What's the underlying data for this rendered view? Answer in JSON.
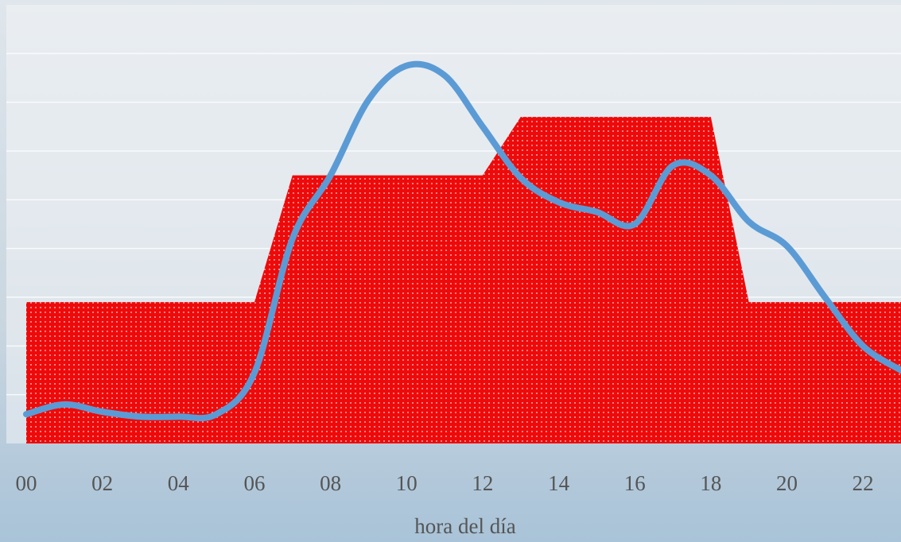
{
  "chart_data": {
    "type": "combo",
    "x_label": "hora del día",
    "x": [
      0,
      1,
      2,
      3,
      4,
      5,
      6,
      7,
      8,
      9,
      10,
      11,
      12,
      13,
      14,
      15,
      16,
      17,
      18,
      19,
      20,
      21,
      22,
      23
    ],
    "series": [
      {
        "type": "area",
        "color": "#ee0a0a",
        "values": [
          2.9,
          2.9,
          2.9,
          2.9,
          2.9,
          2.9,
          2.9,
          5.5,
          5.5,
          5.5,
          5.5,
          5.5,
          5.5,
          6.7,
          6.7,
          6.7,
          6.7,
          6.7,
          6.7,
          2.9,
          2.9,
          2.9,
          2.9,
          2.9
        ]
      },
      {
        "type": "line",
        "color": "#5b9bd5",
        "values": [
          0.6,
          0.8,
          0.65,
          0.55,
          0.55,
          0.6,
          1.45,
          4.2,
          5.5,
          7.05,
          7.75,
          7.55,
          6.5,
          5.45,
          4.95,
          4.75,
          4.5,
          5.7,
          5.5,
          4.55,
          4.05,
          3.0,
          2.0,
          1.5
        ]
      }
    ],
    "xlim": [
      0,
      23
    ],
    "xticks": [
      {
        "value": 0,
        "label": "00"
      },
      {
        "value": 2,
        "label": "02"
      },
      {
        "value": 4,
        "label": "04"
      },
      {
        "value": 6,
        "label": "06"
      },
      {
        "value": 8,
        "label": "08"
      },
      {
        "value": 10,
        "label": "10"
      },
      {
        "value": 12,
        "label": "12"
      },
      {
        "value": 14,
        "label": "14"
      },
      {
        "value": 16,
        "label": "16"
      },
      {
        "value": 18,
        "label": "18"
      },
      {
        "value": 20,
        "label": "20"
      },
      {
        "value": 22,
        "label": "22"
      }
    ],
    "ylim": [
      0,
      9
    ],
    "yticks": [
      1,
      2,
      3,
      4,
      5,
      6,
      7,
      8
    ],
    "grid": true
  }
}
